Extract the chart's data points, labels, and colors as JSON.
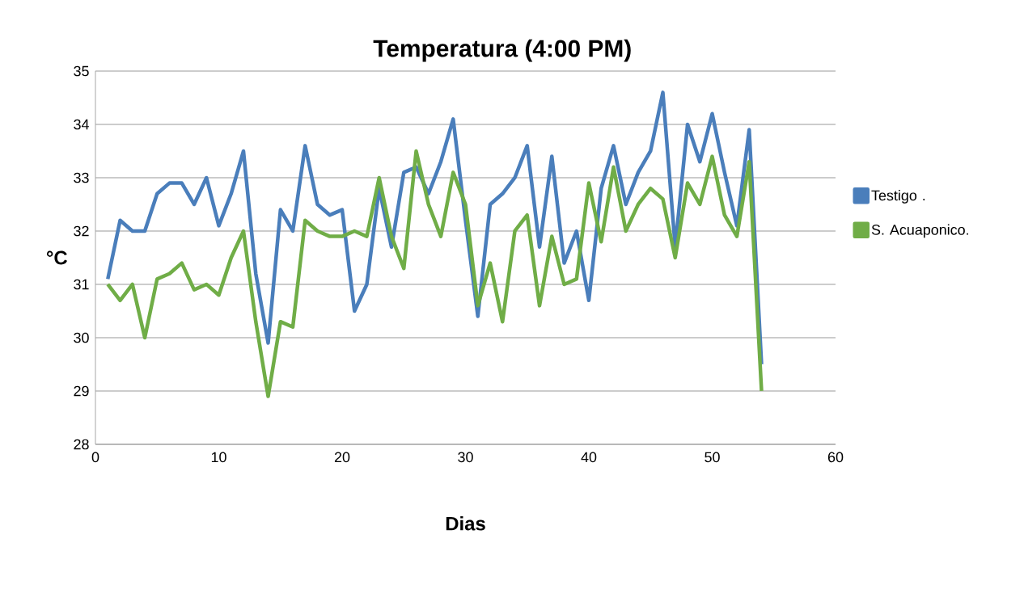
{
  "chart_data": {
    "type": "line",
    "title": "Temperatura (4:00 PM)",
    "xlabel": "Dias",
    "ylabel": "°C",
    "x": [
      1,
      2,
      3,
      4,
      5,
      6,
      7,
      8,
      9,
      10,
      11,
      12,
      13,
      14,
      15,
      16,
      17,
      18,
      19,
      20,
      21,
      22,
      23,
      24,
      25,
      26,
      27,
      28,
      29,
      30,
      31,
      32,
      33,
      34,
      35,
      36,
      37,
      38,
      39,
      40,
      41,
      42,
      43,
      44,
      45,
      46,
      47,
      48,
      49,
      50,
      51,
      52,
      53,
      54
    ],
    "series": [
      {
        "name": "Testigo .",
        "color": "#4a7ebb",
        "values": [
          31.1,
          32.2,
          32.0,
          32.0,
          32.7,
          32.9,
          32.9,
          32.5,
          33.0,
          32.1,
          32.7,
          33.5,
          31.2,
          29.9,
          32.4,
          32.0,
          33.6,
          32.5,
          32.3,
          32.4,
          30.5,
          31.0,
          32.8,
          31.7,
          33.1,
          33.2,
          32.7,
          33.3,
          34.1,
          32.2,
          30.4,
          32.5,
          32.7,
          33.0,
          33.6,
          31.7,
          33.4,
          31.4,
          32.0,
          30.7,
          32.8,
          33.6,
          32.5,
          33.1,
          33.5,
          34.6,
          31.7,
          34.0,
          33.3,
          34.2,
          33.1,
          32.1,
          33.9,
          29.5
        ]
      },
      {
        "name": "S. Acuaponico.",
        "color": "#70ad47",
        "values": [
          31.0,
          30.7,
          31.0,
          30.0,
          31.1,
          31.2,
          31.4,
          30.9,
          31.0,
          30.8,
          31.5,
          32.0,
          30.3,
          28.9,
          30.3,
          30.2,
          32.2,
          32.0,
          31.9,
          31.9,
          32.0,
          31.9,
          33.0,
          31.9,
          31.3,
          33.5,
          32.5,
          31.9,
          33.1,
          32.5,
          30.6,
          31.4,
          30.3,
          32.0,
          32.3,
          30.6,
          31.9,
          31.0,
          31.1,
          32.9,
          31.8,
          33.2,
          32.0,
          32.5,
          32.8,
          32.6,
          31.5,
          32.9,
          32.5,
          33.4,
          32.3,
          31.9,
          33.3,
          29.0
        ]
      }
    ],
    "xlim": [
      0,
      60
    ],
    "xticks": [
      0,
      10,
      20,
      30,
      40,
      50,
      60
    ],
    "ylim": [
      28,
      35
    ],
    "yticks": [
      28,
      29,
      30,
      31,
      32,
      33,
      34,
      35
    ],
    "grid": "y",
    "legend": "right",
    "marker": "none",
    "line_style": "solid"
  }
}
